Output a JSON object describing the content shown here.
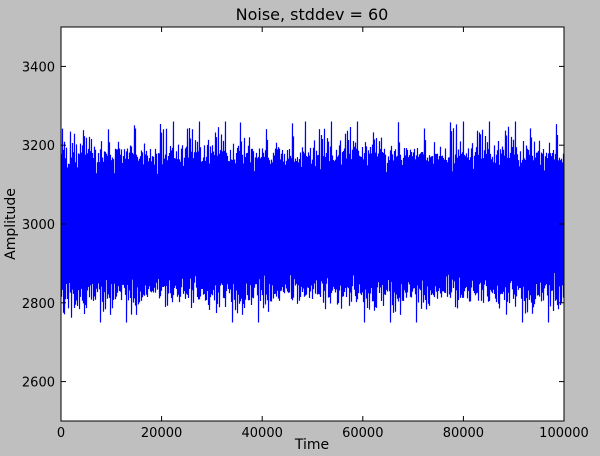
{
  "chart_data": {
    "type": "line",
    "title": "Noise, stddev = 60",
    "xlabel": "Time",
    "ylabel": "Amplitude",
    "xlim": [
      0,
      100000
    ],
    "ylim": [
      2500,
      3500
    ],
    "xticks": [
      0,
      20000,
      40000,
      60000,
      80000,
      100000
    ],
    "yticks": [
      2600,
      2800,
      3000,
      3200,
      3400
    ],
    "grid": false,
    "series": [
      {
        "color": "#0000ff",
        "mean": 3000,
        "stddev": 60,
        "num_points": 100000,
        "min": 2750,
        "max": 3260
      }
    ]
  }
}
